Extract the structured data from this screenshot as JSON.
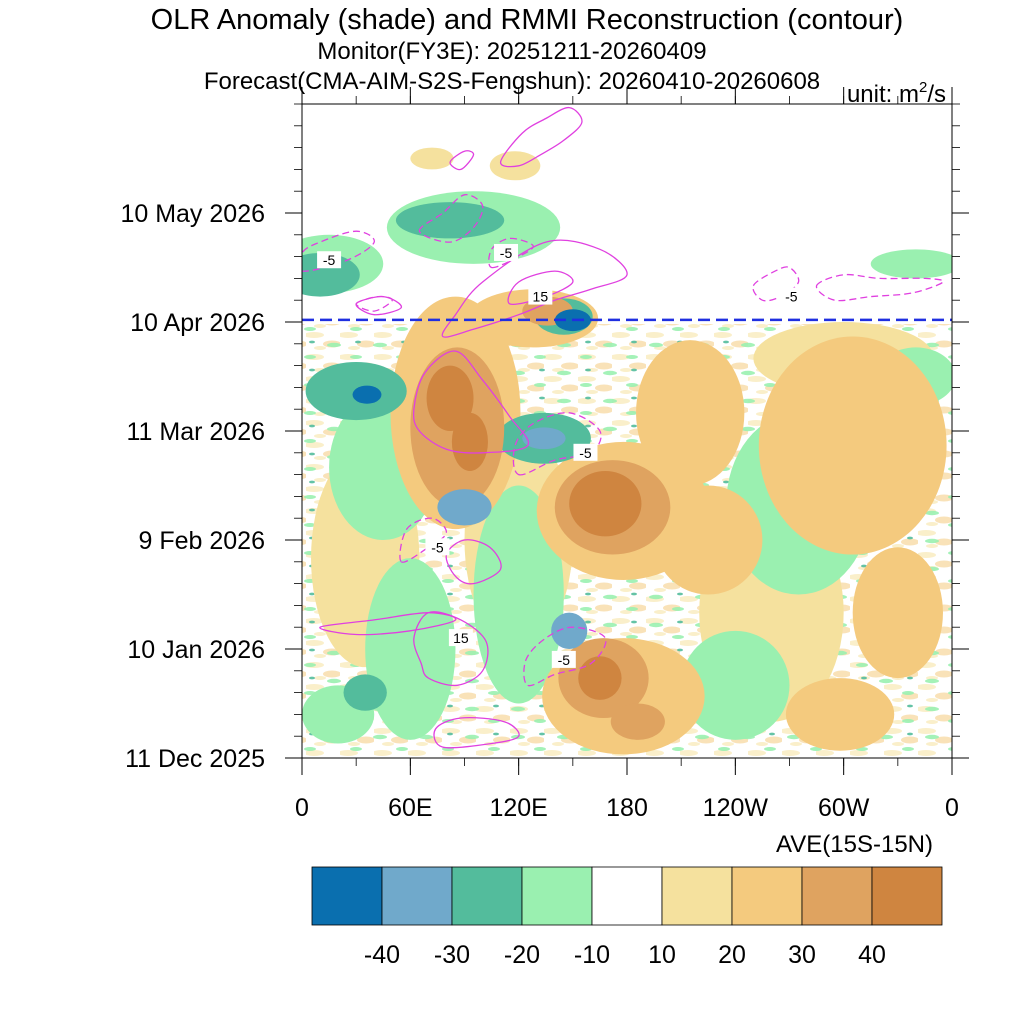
{
  "chart_data": {
    "type": "heatmap",
    "title": "OLR Anomaly (shade) and RMMI Reconstruction (contour)",
    "subtitle_monitor": "Monitor(FY3E): 20251211-20260409",
    "subtitle_forecast": "Forecast(CMA-AIM-S2S-Fengshun): 20260410-20260608",
    "unit_prefix": "unit: m",
    "unit_sup": "2",
    "unit_suffix": "/s",
    "x_axis_label": "AVE(15S-15N)",
    "x_ticks": [
      {
        "label": "0",
        "lon": 0
      },
      {
        "label": "60E",
        "lon": 60
      },
      {
        "label": "120E",
        "lon": 120
      },
      {
        "label": "180",
        "lon": 180
      },
      {
        "label": "120W",
        "lon": 240
      },
      {
        "label": "60W",
        "lon": 300
      },
      {
        "label": "0",
        "lon": 360
      }
    ],
    "x_range": [
      0,
      360
    ],
    "time_range_days": [
      0,
      180
    ],
    "y_ticks": [
      {
        "label": "11 Dec 2025",
        "day": 0
      },
      {
        "label": "10 Jan 2026",
        "day": 30
      },
      {
        "label": "9 Feb 2026",
        "day": 60
      },
      {
        "label": "11 Mar 2026",
        "day": 90
      },
      {
        "label": "10 Apr 2026",
        "day": 120
      },
      {
        "label": "10 May 2026",
        "day": 150
      }
    ],
    "forecast_start_day": 120.6,
    "colorbar": {
      "colors": [
        "#0a6faf",
        "#70a9cb",
        "#53bc9c",
        "#9af0b0",
        "#ffffff",
        "#f5e19e",
        "#f4ca7e",
        "#dfa360",
        "#cf8540"
      ],
      "labels": [
        "-40",
        "-30",
        "-20",
        "-10",
        "10",
        "20",
        "30",
        "40"
      ],
      "levels": [
        -40,
        -30,
        -20,
        -10,
        10,
        20,
        30,
        40
      ]
    },
    "contour_labels": [
      {
        "text": "-5",
        "lon": 15,
        "day": 137
      },
      {
        "text": "-5",
        "lon": 113,
        "day": 139
      },
      {
        "text": "15",
        "lon": 132,
        "day": 127
      },
      {
        "text": "-5",
        "lon": 271,
        "day": 127
      },
      {
        "text": "-5",
        "lon": 157,
        "day": 84
      },
      {
        "text": "-5",
        "lon": 75,
        "day": 58
      },
      {
        "text": "15",
        "lon": 88,
        "day": 33
      },
      {
        "text": "-5",
        "lon": 145,
        "day": 27
      }
    ],
    "anomaly_blobs": [
      {
        "lon": 82,
        "day": 99,
        "rlon": 13,
        "rday": 9,
        "level": 40
      },
      {
        "lon": 93,
        "day": 87,
        "rlon": 10,
        "rday": 8,
        "level": 40
      },
      {
        "lon": 86,
        "day": 91,
        "rlon": 26,
        "rday": 22,
        "level": 30
      },
      {
        "lon": 85,
        "day": 95,
        "rlon": 36,
        "rday": 32,
        "level": 20
      },
      {
        "lon": 168,
        "day": 70,
        "rlon": 20,
        "rday": 9,
        "level": 40
      },
      {
        "lon": 172,
        "day": 69,
        "rlon": 32,
        "rday": 13,
        "level": 30
      },
      {
        "lon": 178,
        "day": 68,
        "rlon": 48,
        "rday": 19,
        "level": 20
      },
      {
        "lon": 165,
        "day": 22,
        "rlon": 12,
        "rday": 6,
        "level": 40
      },
      {
        "lon": 167,
        "day": 22,
        "rlon": 25,
        "rday": 11,
        "level": 30
      },
      {
        "lon": 178,
        "day": 17,
        "rlon": 45,
        "rday": 16,
        "level": 20
      },
      {
        "lon": 186,
        "day": 10,
        "rlon": 15,
        "rday": 5,
        "level": 30
      },
      {
        "lon": 128,
        "day": 121,
        "rlon": 36,
        "rday": 8,
        "level": 20
      },
      {
        "lon": 136,
        "day": 123,
        "rlon": 14,
        "rday": 4,
        "level": 30
      },
      {
        "lon": 118,
        "day": 163,
        "rlon": 14,
        "rday": 4,
        "level": 10
      },
      {
        "lon": 72,
        "day": 165,
        "rlon": 12,
        "rday": 3,
        "level": 10
      },
      {
        "lon": 305,
        "day": 86,
        "rlon": 52,
        "rday": 30,
        "level": 20
      },
      {
        "lon": 215,
        "day": 95,
        "rlon": 30,
        "rday": 20,
        "level": 20
      },
      {
        "lon": 225,
        "day": 60,
        "rlon": 30,
        "rday": 15,
        "level": 20
      },
      {
        "lon": 330,
        "day": 40,
        "rlon": 25,
        "rday": 18,
        "level": 20
      },
      {
        "lon": 298,
        "day": 12,
        "rlon": 30,
        "rday": 10,
        "level": 20
      },
      {
        "lon": 35,
        "day": 55,
        "rlon": 30,
        "rday": 30,
        "level": 10
      },
      {
        "lon": 260,
        "day": 40,
        "rlon": 40,
        "rday": 30,
        "level": 10
      },
      {
        "lon": 120,
        "day": 60,
        "rlon": 30,
        "rday": 30,
        "level": 10
      },
      {
        "lon": 300,
        "day": 110,
        "rlon": 50,
        "rday": 10,
        "level": 10
      },
      {
        "lon": 150,
        "day": 120.5,
        "rlon": 10,
        "rday": 3,
        "level": -40
      },
      {
        "lon": 145,
        "day": 121.5,
        "rlon": 16,
        "rday": 5,
        "level": -20
      },
      {
        "lon": 134,
        "day": 88,
        "rlon": 12,
        "rday": 3,
        "level": -30
      },
      {
        "lon": 134,
        "day": 88,
        "rlon": 26,
        "rday": 7,
        "level": -20
      },
      {
        "lon": 36,
        "day": 100,
        "rlon": 8,
        "rday": 2.5,
        "level": -40
      },
      {
        "lon": 30,
        "day": 101,
        "rlon": 28,
        "rday": 8,
        "level": -20
      },
      {
        "lon": 90,
        "day": 69,
        "rlon": 15,
        "rday": 5,
        "level": -30
      },
      {
        "lon": 148,
        "day": 35,
        "rlon": 10,
        "rday": 5,
        "level": -30
      },
      {
        "lon": 35,
        "day": 18,
        "rlon": 12,
        "rday": 5,
        "level": -20
      },
      {
        "lon": 82,
        "day": 148,
        "rlon": 30,
        "rday": 5,
        "level": -20
      },
      {
        "lon": 10,
        "day": 133,
        "rlon": 22,
        "rday": 6,
        "level": -20
      },
      {
        "lon": 340,
        "day": 136,
        "rlon": 25,
        "rday": 4,
        "level": -10
      },
      {
        "lon": 95,
        "day": 146,
        "rlon": 48,
        "rday": 10,
        "level": -10
      },
      {
        "lon": 15,
        "day": 136,
        "rlon": 30,
        "rday": 8,
        "level": -10
      },
      {
        "lon": 120,
        "day": 45,
        "rlon": 25,
        "rday": 30,
        "level": -10
      },
      {
        "lon": 60,
        "day": 30,
        "rlon": 25,
        "rday": 25,
        "level": -10
      },
      {
        "lon": 45,
        "day": 80,
        "rlon": 30,
        "rday": 20,
        "level": -10
      },
      {
        "lon": 275,
        "day": 70,
        "rlon": 40,
        "rday": 25,
        "level": -10
      },
      {
        "lon": 340,
        "day": 105,
        "rlon": 22,
        "rday": 8,
        "level": -10
      },
      {
        "lon": 240,
        "day": 20,
        "rlon": 30,
        "rday": 15,
        "level": -10
      },
      {
        "lon": 20,
        "day": 12,
        "rlon": 20,
        "rday": 8,
        "level": -10
      }
    ],
    "contours": [
      {
        "value": 15,
        "points": [
          [
            78,
            3
          ],
          [
            105,
            4
          ],
          [
            120,
            6
          ],
          [
            112,
            10
          ],
          [
            88,
            11
          ],
          [
            74,
            8
          ]
        ]
      },
      {
        "value": 15,
        "points": [
          [
            70,
            22
          ],
          [
            86,
            20
          ],
          [
            100,
            24
          ],
          [
            102,
            32
          ],
          [
            88,
            38
          ],
          [
            70,
            40
          ],
          [
            62,
            33
          ],
          [
            66,
            26
          ]
        ]
      },
      {
        "value": 15,
        "points": [
          [
            10,
            36
          ],
          [
            40,
            38
          ],
          [
            70,
            40
          ],
          [
            85,
            38
          ],
          [
            60,
            35
          ],
          [
            30,
            34
          ]
        ]
      },
      {
        "value": 15,
        "points": [
          [
            85,
            50
          ],
          [
            95,
            48
          ],
          [
            110,
            52
          ],
          [
            104,
            58
          ],
          [
            90,
            60
          ],
          [
            80,
            56
          ]
        ]
      },
      {
        "value": 15,
        "points": [
          [
            65,
            90
          ],
          [
            80,
            85
          ],
          [
            100,
            84
          ],
          [
            125,
            86
          ],
          [
            115,
            94
          ],
          [
            100,
            104
          ],
          [
            85,
            112
          ],
          [
            68,
            106
          ],
          [
            62,
            96
          ]
        ]
      },
      {
        "value": 15,
        "points": [
          [
            78,
            116
          ],
          [
            95,
            118
          ],
          [
            120,
            122
          ],
          [
            140,
            126
          ],
          [
            160,
            129
          ],
          [
            180,
            133
          ],
          [
            165,
            140
          ],
          [
            135,
            142
          ],
          [
            100,
            131
          ],
          [
            85,
            122
          ]
        ]
      },
      {
        "value": 15,
        "points": [
          [
            115,
            125
          ],
          [
            135,
            127
          ],
          [
            150,
            131
          ],
          [
            140,
            134
          ],
          [
            120,
            131
          ]
        ]
      },
      {
        "value": 15,
        "points": [
          [
            110,
            164
          ],
          [
            122,
            172
          ],
          [
            135,
            176
          ],
          [
            148,
            179
          ],
          [
            155,
            175
          ],
          [
            145,
            170
          ],
          [
            132,
            166
          ],
          [
            120,
            163
          ]
        ]
      },
      {
        "value": 15,
        "points": [
          [
            82,
            164
          ],
          [
            90,
            167
          ],
          [
            95,
            166
          ],
          [
            88,
            162
          ]
        ]
      },
      {
        "value": 15,
        "points": [
          [
            30,
            125
          ],
          [
            45,
            127
          ],
          [
            55,
            124
          ],
          [
            40,
            122
          ]
        ]
      },
      {
        "value": -5,
        "points": [
          [
            125,
            20
          ],
          [
            140,
            23
          ],
          [
            160,
            26
          ],
          [
            168,
            33
          ],
          [
            150,
            36
          ],
          [
            135,
            33
          ],
          [
            124,
            27
          ]
        ]
      },
      {
        "value": -5,
        "points": [
          [
            55,
            54
          ],
          [
            70,
            58
          ],
          [
            80,
            62
          ],
          [
            72,
            66
          ],
          [
            58,
            63
          ]
        ]
      },
      {
        "value": -5,
        "points": [
          [
            120,
            78
          ],
          [
            140,
            82
          ],
          [
            160,
            84
          ],
          [
            165,
            90
          ],
          [
            148,
            95
          ],
          [
            128,
            92
          ],
          [
            118,
            86
          ]
        ]
      },
      {
        "value": -5,
        "points": [
          [
            0,
            134
          ],
          [
            25,
            137
          ],
          [
            40,
            142
          ],
          [
            30,
            145
          ],
          [
            10,
            142
          ],
          [
            0,
            139
          ]
        ]
      },
      {
        "value": -5,
        "points": [
          [
            65,
            145
          ],
          [
            78,
            150
          ],
          [
            90,
            155
          ],
          [
            100,
            152
          ],
          [
            95,
            146
          ],
          [
            82,
            142
          ]
        ]
      },
      {
        "value": -5,
        "points": [
          [
            105,
            135
          ],
          [
            120,
            138
          ],
          [
            128,
            141
          ],
          [
            115,
            143
          ],
          [
            105,
            140
          ]
        ]
      },
      {
        "value": -5,
        "points": [
          [
            250,
            130
          ],
          [
            262,
            134
          ],
          [
            270,
            135
          ],
          [
            275,
            131
          ],
          [
            265,
            127
          ],
          [
            255,
            126
          ]
        ]
      },
      {
        "value": -5,
        "points": [
          [
            285,
            130
          ],
          [
            300,
            133
          ],
          [
            320,
            132
          ],
          [
            345,
            132
          ],
          [
            355,
            131
          ],
          [
            338,
            128
          ],
          [
            315,
            127
          ],
          [
            295,
            126
          ]
        ]
      },
      {
        "value": -5,
        "points": [
          [
            30,
            125
          ],
          [
            42,
            127
          ],
          [
            50,
            126
          ],
          [
            40,
            123
          ]
        ]
      }
    ]
  }
}
